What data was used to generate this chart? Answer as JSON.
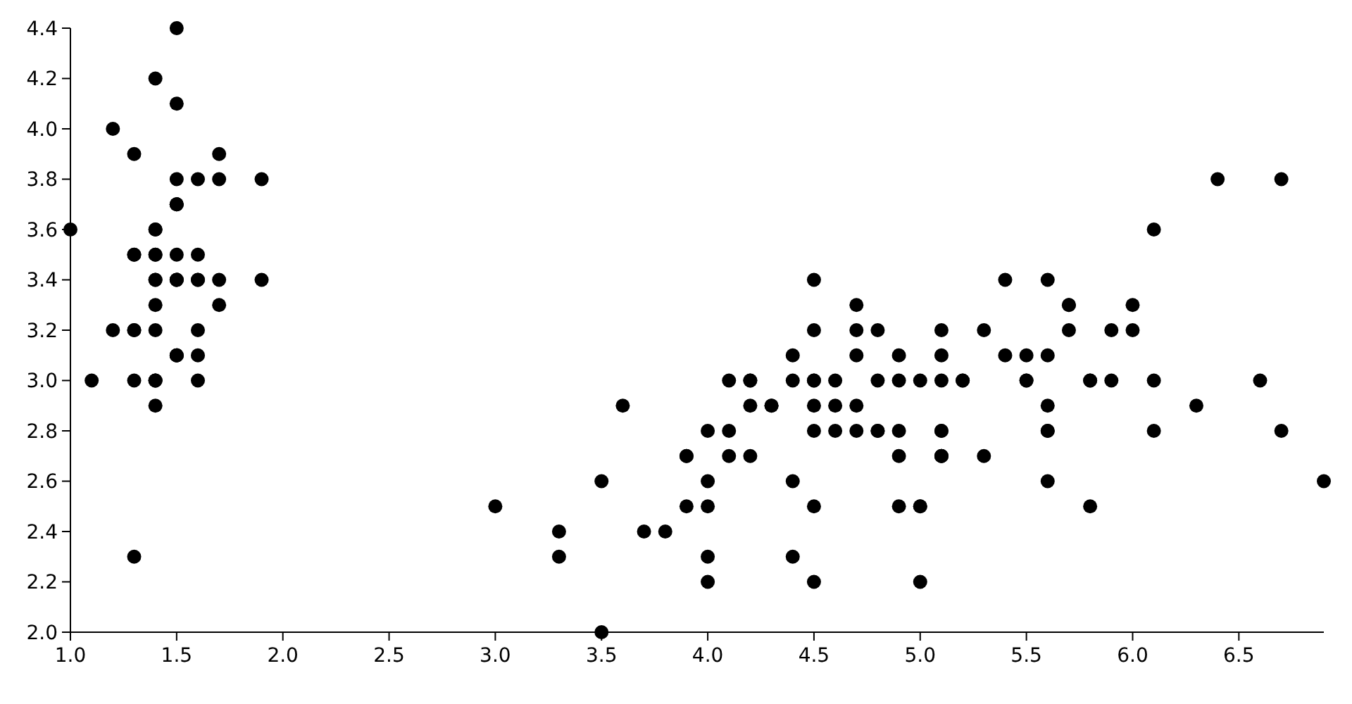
{
  "chart_data": {
    "type": "scatter",
    "marker": "circle",
    "grid": false,
    "xlim": [
      1,
      6.9
    ],
    "xticks": [
      {
        "value": 1,
        "label": "1.0"
      },
      1.5,
      {
        "value": 2,
        "label": "2.0"
      },
      2.5,
      {
        "value": 3,
        "label": "3.0"
      },
      3.5,
      {
        "value": 4,
        "label": "4.0"
      },
      4.5,
      {
        "value": 5,
        "label": "5.0"
      },
      5.5,
      {
        "value": 6,
        "label": "6.0"
      },
      6.5
    ],
    "ylim": [
      2,
      4.4
    ],
    "yticks": [
      {
        "value": 2,
        "label": "2.0"
      },
      2.2,
      2.4,
      2.6,
      2.8,
      {
        "value": 3,
        "label": "3.0"
      },
      3.2,
      3.4,
      3.6,
      3.8,
      {
        "value": 4,
        "label": "4.0"
      },
      4.2,
      4.4
    ],
    "series": [
      {
        "color": "#000000",
        "x": [
          1.4,
          1.4,
          1.3,
          1.5,
          1.4,
          1.7,
          1.4,
          1.5,
          1.4,
          1.5,
          1.5,
          1.6,
          1.4,
          1.1,
          1.2,
          1.5,
          1.3,
          1.4,
          1.7,
          1.5,
          1.7,
          1.5,
          1.0,
          1.7,
          1.9,
          1.6,
          1.6,
          1.5,
          1.4,
          1.6,
          1.6,
          1.5,
          1.5,
          1.4,
          1.5,
          1.2,
          1.3,
          1.4,
          1.3,
          1.5,
          1.3,
          1.3,
          1.3,
          1.6,
          1.9,
          1.4,
          1.6,
          1.4,
          1.5,
          1.4,
          4.7,
          4.5,
          4.9,
          4.0,
          4.6,
          4.5,
          4.7,
          3.3,
          4.6,
          3.9,
          3.5,
          4.2,
          4.0,
          4.7,
          3.6,
          4.4,
          4.5,
          4.1,
          4.5,
          3.9,
          4.8,
          4.0,
          4.9,
          4.7,
          4.3,
          4.4,
          4.8,
          5.0,
          4.5,
          3.5,
          3.8,
          3.7,
          3.9,
          5.1,
          4.5,
          4.5,
          4.7,
          4.4,
          4.1,
          4.0,
          4.4,
          4.6,
          4.0,
          3.3,
          4.2,
          4.2,
          4.2,
          4.3,
          3.0,
          4.1,
          6.0,
          5.1,
          5.9,
          5.6,
          5.8,
          6.6,
          4.5,
          6.3,
          5.8,
          6.1,
          5.1,
          5.3,
          5.5,
          5.0,
          5.1,
          5.3,
          5.5,
          6.7,
          6.9,
          5.0,
          5.7,
          4.9,
          6.7,
          4.9,
          5.7,
          6.0,
          4.8,
          4.9,
          5.6,
          5.8,
          6.1,
          6.4,
          5.6,
          5.1,
          5.6,
          6.1,
          5.6,
          5.5,
          4.8,
          5.4,
          5.6,
          5.1,
          5.1,
          5.9,
          5.7,
          5.2,
          5.0,
          5.2,
          5.4,
          5.1
        ],
        "values": [
          3.5,
          3.0,
          3.2,
          3.1,
          3.6,
          3.9,
          3.4,
          3.4,
          2.9,
          3.1,
          3.7,
          3.4,
          3.0,
          3.0,
          4.0,
          4.4,
          3.9,
          3.5,
          3.8,
          3.8,
          3.4,
          3.7,
          3.6,
          3.3,
          3.4,
          3.0,
          3.4,
          3.5,
          3.4,
          3.2,
          3.1,
          3.4,
          4.1,
          4.2,
          3.1,
          3.2,
          3.5,
          3.6,
          3.0,
          3.4,
          3.5,
          2.3,
          3.2,
          3.5,
          3.8,
          3.0,
          3.8,
          3.2,
          3.7,
          3.3,
          3.2,
          3.2,
          3.1,
          2.3,
          2.8,
          2.8,
          3.3,
          2.4,
          2.9,
          2.7,
          2.0,
          3.0,
          2.2,
          2.9,
          2.9,
          3.1,
          3.0,
          2.7,
          2.2,
          2.5,
          3.2,
          2.8,
          2.5,
          2.8,
          2.9,
          3.0,
          2.8,
          3.0,
          2.9,
          2.6,
          2.4,
          2.4,
          2.7,
          2.7,
          3.0,
          3.4,
          3.1,
          2.3,
          3.0,
          2.5,
          2.6,
          3.0,
          2.6,
          2.3,
          2.7,
          3.0,
          2.9,
          2.9,
          2.5,
          2.8,
          3.3,
          2.7,
          3.0,
          2.9,
          3.0,
          3.0,
          2.5,
          2.9,
          2.5,
          3.6,
          3.2,
          2.7,
          3.0,
          2.5,
          2.8,
          3.2,
          3.0,
          3.8,
          2.6,
          2.2,
          3.2,
          2.8,
          2.8,
          2.7,
          3.3,
          3.2,
          2.8,
          3.0,
          2.8,
          3.0,
          2.8,
          3.8,
          2.8,
          2.8,
          2.6,
          3.0,
          3.4,
          3.1,
          3.0,
          3.1,
          3.1,
          3.1,
          2.7,
          3.2,
          3.3,
          3.0,
          2.5,
          3.0,
          3.4,
          3.0
        ]
      }
    ]
  }
}
